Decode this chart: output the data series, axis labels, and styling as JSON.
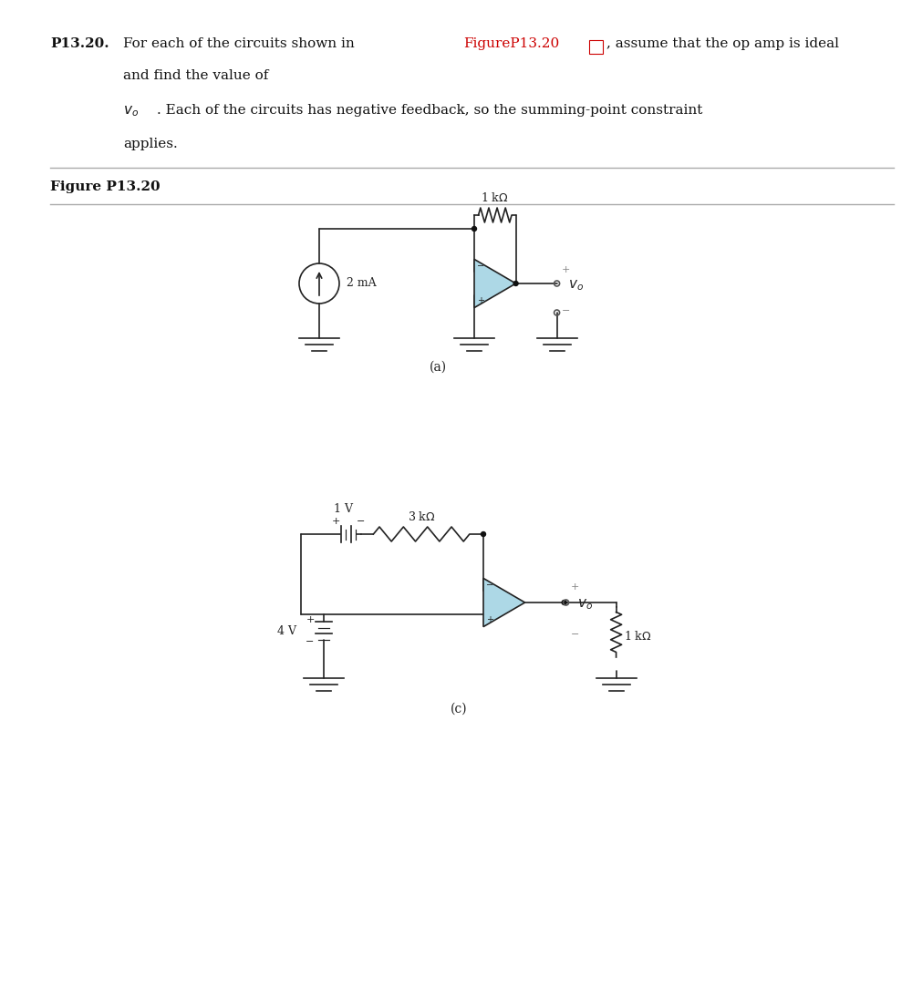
{
  "title_bold": "P13.20.",
  "title_text": "  For each of the circuits shown in ",
  "title_red": "FigureP13.20",
  "title_icon": "□",
  "title_rest": ", assume that the op amp is ideal",
  "line2": "and find the value of",
  "line3_italic": "v₀",
  "line3_rest": ". Each of the circuits has negative feedback, so the summing-point constraint",
  "line4": "applies.",
  "figure_label": "Figure P13.20",
  "circuit_a_label": "(a)",
  "circuit_c_label": "(c)",
  "bg_color": "#ffffff",
  "line_color": "#222222",
  "op_amp_fill": "#add8e6",
  "text_color": "#111111",
  "red_color": "#cc0000",
  "gray_color": "#888888"
}
